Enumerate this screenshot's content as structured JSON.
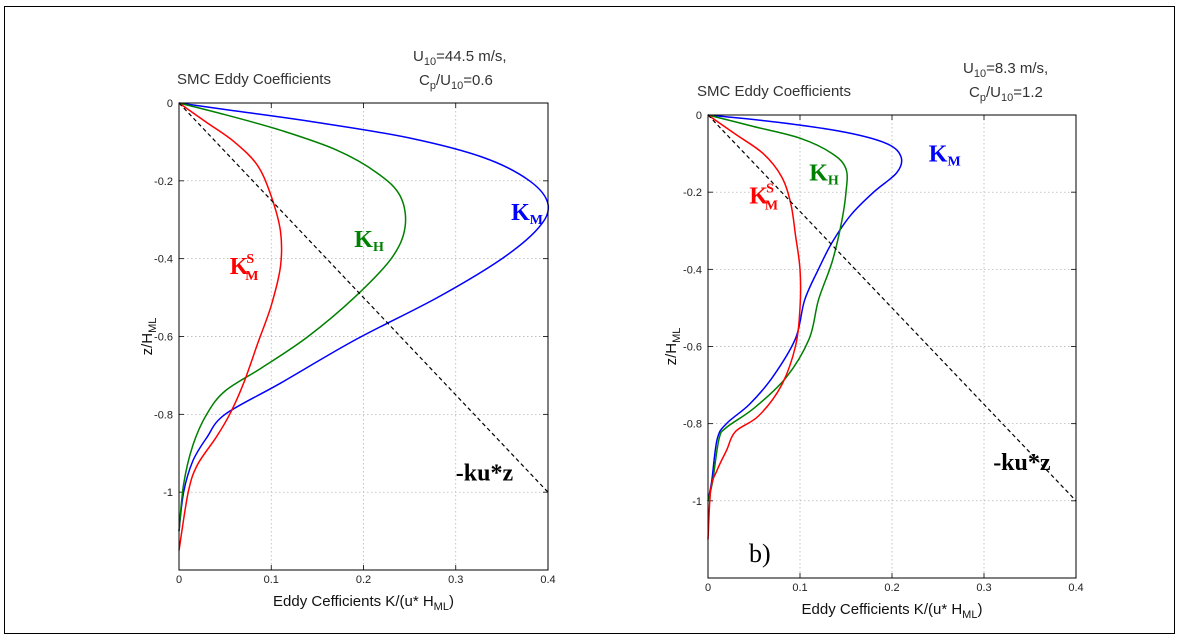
{
  "chart_data": [
    {
      "type": "line",
      "panel": "a",
      "title": "SMC Eddy Coefficients",
      "condition_line1": {
        "U": "U",
        "sub": "10",
        "rest": "=44.5 m/s,"
      },
      "condition_line2": {
        "C": "C",
        "csub": "p",
        "mid": "/U",
        "usub": "10",
        "rest": "=0.6"
      },
      "xlabel": {
        "main": "Eddy Cefficients K/(u* H",
        "sub": "ML",
        "end": ")"
      },
      "ylabel": {
        "main": "z/H",
        "sub": "ML"
      },
      "xlim": [
        0,
        0.4
      ],
      "ylim": [
        -1.2,
        0
      ],
      "xticks": [
        0,
        0.1,
        0.2,
        0.3,
        0.4
      ],
      "yticks": [
        0,
        -0.2,
        -0.4,
        -0.6,
        -0.8,
        -1
      ],
      "xtick_labels": [
        "0",
        "0.1",
        "0.2",
        "0.3",
        "0.4"
      ],
      "ytick_labels": [
        "0",
        "-0.2",
        "-0.4",
        "-0.6",
        "-0.8",
        "-1"
      ],
      "grid": true,
      "series": [
        {
          "key": "KM",
          "color": "#0000ff",
          "x": [
            0.0,
            0.06,
            0.15,
            0.25,
            0.33,
            0.38,
            0.4,
            0.39,
            0.35,
            0.28,
            0.19,
            0.11,
            0.05,
            0.03,
            0.015,
            0.005,
            0.0
          ],
          "y": [
            0.0,
            -0.02,
            -0.05,
            -0.09,
            -0.14,
            -0.2,
            -0.26,
            -0.32,
            -0.4,
            -0.5,
            -0.61,
            -0.72,
            -0.8,
            -0.86,
            -0.92,
            -1.0,
            -1.1
          ]
        },
        {
          "key": "KH",
          "color": "#008000",
          "x": [
            0.0,
            0.05,
            0.11,
            0.17,
            0.215,
            0.24,
            0.245,
            0.23,
            0.19,
            0.14,
            0.09,
            0.05,
            0.03,
            0.015,
            0.005,
            0.0
          ],
          "y": [
            0.0,
            -0.03,
            -0.07,
            -0.12,
            -0.18,
            -0.24,
            -0.32,
            -0.4,
            -0.5,
            -0.6,
            -0.68,
            -0.74,
            -0.8,
            -0.88,
            -0.98,
            -1.1
          ]
        },
        {
          "key": "KMS",
          "color": "#ff0000",
          "x": [
            0.0,
            0.03,
            0.06,
            0.085,
            0.1,
            0.11,
            0.11,
            0.1,
            0.085,
            0.07,
            0.055,
            0.04,
            0.02,
            0.01,
            0.0
          ],
          "y": [
            0.0,
            -0.05,
            -0.1,
            -0.16,
            -0.24,
            -0.33,
            -0.42,
            -0.52,
            -0.62,
            -0.72,
            -0.8,
            -0.86,
            -0.93,
            -1.0,
            -1.15
          ]
        },
        {
          "key": "kuz",
          "color": "#000000",
          "dashed": true,
          "x": [
            0.0,
            0.4
          ],
          "y": [
            0.0,
            -1.0
          ]
        }
      ],
      "annotations": [
        {
          "key": "KM",
          "main": "K",
          "sub": "M",
          "sup": "",
          "color": "#0000ff",
          "x": 0.36,
          "y": -0.3
        },
        {
          "key": "KH",
          "main": "K",
          "sub": "H",
          "sup": "",
          "color": "#008000",
          "x": 0.19,
          "y": -0.37
        },
        {
          "key": "KMS",
          "main": "K",
          "sub": "M",
          "sup": "S",
          "color": "#ff0000",
          "x": 0.055,
          "y": -0.44
        },
        {
          "key": "kuz",
          "main": "-ku",
          "sub": "",
          "sup": "",
          "color": "#000000",
          "x": 0.3,
          "y": -0.97,
          "tail": "*z"
        }
      ]
    },
    {
      "type": "line",
      "panel": "b",
      "panel_label": "b)",
      "title": "SMC Eddy Coefficients",
      "condition_line1": {
        "U": "U",
        "sub": "10",
        "rest": "=8.3 m/s,"
      },
      "condition_line2": {
        "C": "C",
        "csub": "p",
        "mid": "/U",
        "usub": "10",
        "rest": "=1.2"
      },
      "xlabel": {
        "main": "Eddy Cefficients K/(u* H",
        "sub": "ML",
        "end": ")"
      },
      "ylabel": {
        "main": "z/H",
        "sub": "ML"
      },
      "xlim": [
        0,
        0.4
      ],
      "ylim": [
        -1.2,
        0
      ],
      "xticks": [
        0,
        0.1,
        0.2,
        0.3,
        0.4
      ],
      "yticks": [
        0,
        -0.2,
        -0.4,
        -0.6,
        -0.8,
        -1
      ],
      "xtick_labels": [
        "0",
        "0.1",
        "0.2",
        "0.3",
        "0.4"
      ],
      "ytick_labels": [
        "0",
        "-0.2",
        "-0.4",
        "-0.6",
        "-0.8",
        "-1"
      ],
      "grid": true,
      "series": [
        {
          "key": "KM",
          "color": "#0000ff",
          "x": [
            0.0,
            0.08,
            0.15,
            0.195,
            0.21,
            0.205,
            0.18,
            0.155,
            0.135,
            0.12,
            0.105,
            0.095,
            0.07,
            0.045,
            0.02,
            0.01,
            0.004,
            0.0
          ],
          "y": [
            0.0,
            -0.02,
            -0.045,
            -0.075,
            -0.11,
            -0.15,
            -0.2,
            -0.26,
            -0.33,
            -0.4,
            -0.48,
            -0.58,
            -0.68,
            -0.75,
            -0.8,
            -0.84,
            -0.95,
            -1.0
          ]
        },
        {
          "key": "KH",
          "color": "#008000",
          "x": [
            0.0,
            0.05,
            0.1,
            0.135,
            0.15,
            0.15,
            0.145,
            0.135,
            0.12,
            0.11,
            0.085,
            0.05,
            0.02,
            0.012,
            0.005,
            0.0
          ],
          "y": [
            0.0,
            -0.03,
            -0.06,
            -0.1,
            -0.14,
            -0.2,
            -0.28,
            -0.38,
            -0.48,
            -0.58,
            -0.68,
            -0.76,
            -0.81,
            -0.84,
            -0.95,
            -1.0
          ]
        },
        {
          "key": "KMS",
          "color": "#ff0000",
          "x": [
            0.0,
            0.03,
            0.06,
            0.08,
            0.09,
            0.095,
            0.1,
            0.1,
            0.095,
            0.08,
            0.055,
            0.03,
            0.02,
            0.01,
            0.003,
            0.0
          ],
          "y": [
            0.0,
            -0.05,
            -0.1,
            -0.16,
            -0.23,
            -0.31,
            -0.4,
            -0.5,
            -0.6,
            -0.7,
            -0.78,
            -0.82,
            -0.87,
            -0.92,
            -0.97,
            -1.1
          ]
        },
        {
          "key": "kuz",
          "color": "#000000",
          "dashed": true,
          "x": [
            0.0,
            0.4
          ],
          "y": [
            0.0,
            -1.0
          ]
        }
      ],
      "annotations": [
        {
          "key": "KM",
          "main": "K",
          "sub": "M",
          "sup": "",
          "color": "#0000ff",
          "x": 0.24,
          "y": -0.12
        },
        {
          "key": "KH",
          "main": "K",
          "sub": "H",
          "sup": "",
          "color": "#008000",
          "x": 0.11,
          "y": -0.17
        },
        {
          "key": "KMS",
          "main": "K",
          "sub": "M",
          "sup": "S",
          "color": "#ff0000",
          "x": 0.045,
          "y": -0.23
        },
        {
          "key": "kuz",
          "main": "-ku",
          "sub": "",
          "sup": "",
          "color": "#000000",
          "x": 0.31,
          "y": -0.92,
          "tail": "*z"
        }
      ]
    }
  ]
}
